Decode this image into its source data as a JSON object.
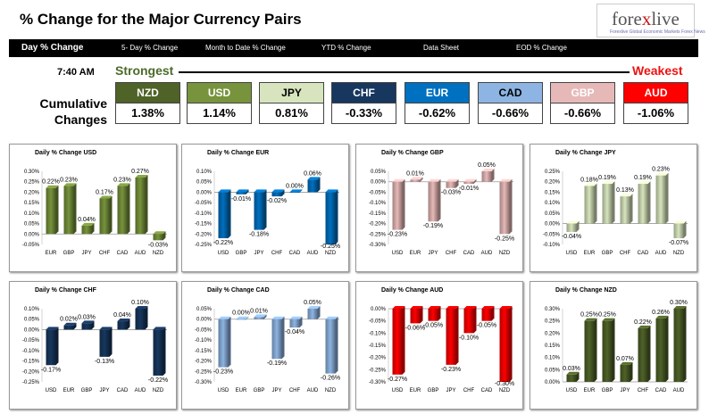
{
  "header": {
    "title": "% Change for the Major Currency Pairs"
  },
  "logo": {
    "main_a": "fore",
    "main_x": "x",
    "main_b": "live",
    "tagline": "Forexlive Global Economic Markets Forex News"
  },
  "nav": {
    "tabs": [
      "Day % Change",
      "5- Day % Change",
      "Month to Date % Change",
      "YTD % Change",
      "Data Sheet",
      "EOD % Change"
    ],
    "active": "Day % Change"
  },
  "summary": {
    "time": "7:40 AM",
    "strongest_label": "Strongest",
    "weakest_label": "Weakest",
    "cumulative_label_1": "Cumulative",
    "cumulative_label_2": "Changes",
    "currencies": [
      {
        "code": "NZD",
        "value": "1.38%",
        "color": "#4f6228",
        "text_color": "#ffffff"
      },
      {
        "code": "USD",
        "value": "1.14%",
        "color": "#77933c",
        "text_color": "#ffffff"
      },
      {
        "code": "JPY",
        "value": "0.81%",
        "color": "#d7e4bd",
        "text_color": "#000000"
      },
      {
        "code": "CHF",
        "value": "-0.33%",
        "color": "#17375e",
        "text_color": "#ffffff"
      },
      {
        "code": "EUR",
        "value": "-0.62%",
        "color": "#0070c0",
        "text_color": "#ffffff"
      },
      {
        "code": "CAD",
        "value": "-0.66%",
        "color": "#8db4e2",
        "text_color": "#000000"
      },
      {
        "code": "GBP",
        "value": "-0.66%",
        "color": "#e6b9b8",
        "text_color": "#ffffff"
      },
      {
        "code": "AUD",
        "value": "-1.06%",
        "color": "#ff0000",
        "text_color": "#ffffff"
      }
    ]
  },
  "chart_data": [
    {
      "type": "bar",
      "title": "Daily % Change USD",
      "base": "USD",
      "color": "#77933c",
      "categories": [
        "EUR",
        "GBP",
        "JPY",
        "CHF",
        "CAD",
        "AUD",
        "NZD"
      ],
      "values": [
        0.22,
        0.23,
        0.04,
        0.17,
        0.23,
        0.27,
        -0.03
      ],
      "ylim": [
        -0.05,
        0.3
      ],
      "step": 0.05,
      "ticks": [
        "-0.05%",
        "0.00%",
        "0.05%",
        "0.10%",
        "0.15%",
        "0.20%",
        "0.25%",
        "0.30%"
      ],
      "labels": [
        "0.22%",
        "0.23%",
        "0.04%",
        "0.17%",
        "0.23%",
        "0.27%",
        "-0.03%"
      ]
    },
    {
      "type": "bar",
      "title": "Daily % Change EUR",
      "base": "EUR",
      "color": "#0070c0",
      "categories": [
        "USD",
        "GBP",
        "JPY",
        "CHF",
        "CAD",
        "AUD",
        "NZD"
      ],
      "values": [
        -0.22,
        -0.01,
        -0.18,
        -0.02,
        0.0,
        0.06,
        -0.25
      ],
      "ylim": [
        -0.25,
        0.1
      ],
      "step": 0.05,
      "ticks": [
        "-0.25%",
        "-0.20%",
        "-0.15%",
        "-0.10%",
        "-0.05%",
        "0.00%",
        "0.05%",
        "0.10%"
      ],
      "labels": [
        "-0.22%",
        "-0.01%",
        "-0.18%",
        "-0.02%",
        "0.00%",
        "0.06%",
        "-0.25%"
      ]
    },
    {
      "type": "bar",
      "title": "Daily % Change GBP",
      "base": "GBP",
      "color": "#e6b9b8",
      "categories": [
        "USD",
        "EUR",
        "JPY",
        "CHF",
        "CAD",
        "AUD",
        "NZD"
      ],
      "values": [
        -0.23,
        0.01,
        -0.19,
        -0.03,
        -0.01,
        0.05,
        -0.25
      ],
      "ylim": [
        -0.3,
        0.05
      ],
      "step": 0.05,
      "ticks": [
        "-0.30%",
        "-0.25%",
        "-0.20%",
        "-0.15%",
        "-0.10%",
        "-0.05%",
        "0.00%",
        "0.05%"
      ],
      "labels": [
        "-0.23%",
        "0.01%",
        "-0.19%",
        "-0.03%",
        "-0.01%",
        "0.05%",
        "-0.25%"
      ]
    },
    {
      "type": "bar",
      "title": "Daily % Change JPY",
      "base": "JPY",
      "color": "#d7e4bd",
      "categories": [
        "USD",
        "EUR",
        "GBP",
        "CHF",
        "CAD",
        "AUD",
        "NZD"
      ],
      "values": [
        -0.04,
        0.18,
        0.19,
        0.13,
        0.19,
        0.23,
        -0.07
      ],
      "ylim": [
        -0.1,
        0.25
      ],
      "step": 0.05,
      "ticks": [
        "-0.10%",
        "-0.05%",
        "0.00%",
        "0.05%",
        "0.10%",
        "0.15%",
        "0.20%",
        "0.25%"
      ],
      "labels": [
        "-0.04%",
        "0.18%",
        "0.19%",
        "0.13%",
        "0.19%",
        "0.23%",
        "-0.07%"
      ]
    },
    {
      "type": "bar",
      "title": "Daily % Change CHF",
      "base": "CHF",
      "color": "#17375e",
      "categories": [
        "USD",
        "EUR",
        "GBP",
        "JPY",
        "CAD",
        "AUD",
        "NZD"
      ],
      "values": [
        -0.17,
        0.02,
        0.03,
        -0.13,
        0.04,
        0.1,
        -0.22
      ],
      "ylim": [
        -0.25,
        0.1
      ],
      "step": 0.05,
      "ticks": [
        "-0.25%",
        "-0.20%",
        "-0.15%",
        "-0.10%",
        "-0.05%",
        "0.00%",
        "0.05%",
        "0.10%"
      ],
      "labels": [
        "-0.17%",
        "0.02%",
        "0.03%",
        "-0.13%",
        "0.04%",
        "0.10%",
        "-0.22%"
      ]
    },
    {
      "type": "bar",
      "title": "Daily % Change CAD",
      "base": "CAD",
      "color": "#8db4e2",
      "categories": [
        "USD",
        "EUR",
        "GBP",
        "JPY",
        "CHF",
        "AUD",
        "NZD"
      ],
      "values": [
        -0.23,
        0.0,
        0.01,
        -0.19,
        -0.04,
        0.05,
        -0.26
      ],
      "ylim": [
        -0.3,
        0.05
      ],
      "step": 0.05,
      "ticks": [
        "-0.30%",
        "-0.25%",
        "-0.20%",
        "-0.15%",
        "-0.10%",
        "-0.05%",
        "0.00%",
        "0.05%"
      ],
      "labels": [
        "-0.23%",
        "0.00%",
        "0.01%",
        "-0.19%",
        "-0.04%",
        "0.05%",
        "-0.26%"
      ]
    },
    {
      "type": "bar",
      "title": "Daily % Change AUD",
      "base": "AUD",
      "color": "#ff0000",
      "categories": [
        "USD",
        "EUR",
        "GBP",
        "JPY",
        "CHF",
        "CAD",
        "NZD"
      ],
      "values": [
        -0.27,
        -0.06,
        -0.05,
        -0.23,
        -0.1,
        -0.05,
        -0.3
      ],
      "ylim": [
        -0.3,
        0.0
      ],
      "step": 0.05,
      "ticks": [
        "-0.30%",
        "-0.25%",
        "-0.20%",
        "-0.15%",
        "-0.10%",
        "-0.05%",
        "0.00%"
      ],
      "labels": [
        "-0.27%",
        "-0.06%",
        "-0.05%",
        "-0.23%",
        "-0.10%",
        "-0.05%",
        "-0.30%"
      ]
    },
    {
      "type": "bar",
      "title": "Daily % Change NZD",
      "base": "NZD",
      "color": "#4f6228",
      "categories": [
        "USD",
        "EUR",
        "GBP",
        "JPY",
        "CHF",
        "CAD",
        "AUD"
      ],
      "values": [
        0.03,
        0.25,
        0.25,
        0.07,
        0.22,
        0.26,
        0.3
      ],
      "ylim": [
        0.0,
        0.3
      ],
      "step": 0.05,
      "ticks": [
        "0.00%",
        "0.05%",
        "0.10%",
        "0.15%",
        "0.20%",
        "0.25%",
        "0.30%"
      ],
      "labels": [
        "0.03%",
        "0.25%",
        "0.25%",
        "0.07%",
        "0.22%",
        "0.26%",
        "0.30%"
      ]
    }
  ]
}
